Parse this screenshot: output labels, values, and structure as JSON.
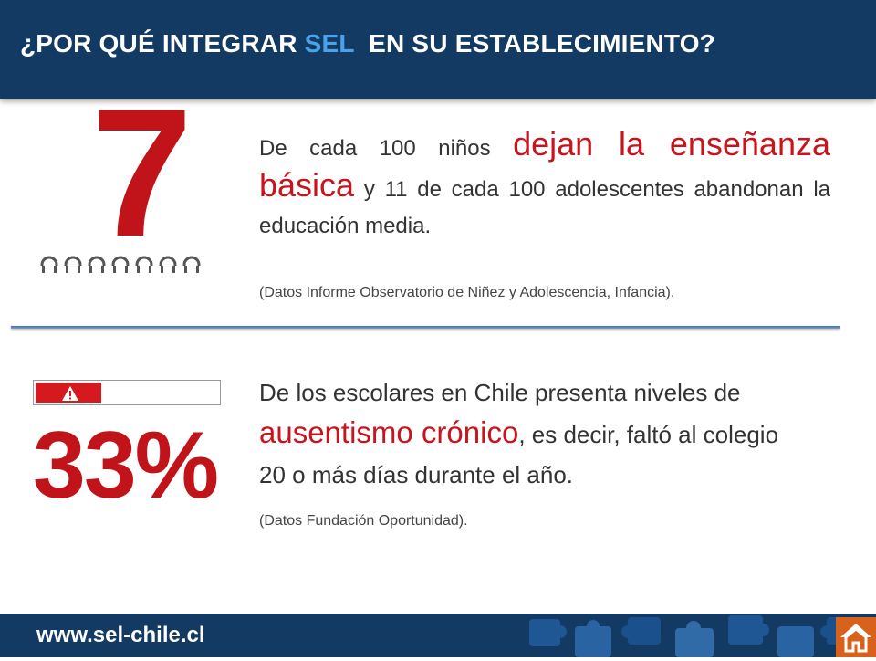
{
  "header": {
    "title_pre": "¿POR QUÉ INTEGRAR ",
    "title_highlight": "SEL",
    "title_post": "  EN SU ESTABLECIMIENTO?"
  },
  "stat1": {
    "figure": "7",
    "people_icon": "person-icon",
    "people_count": 7,
    "text_a": "De cada 100 niños ",
    "text_b": "dejan la enseñanza básica",
    "text_c": " y 11 de cada 100 adolescentes abandonan la educación media.",
    "source": "(Datos Informe Observatorio de Niñez y Adolescencia, Infancia)."
  },
  "stat2": {
    "figure": "33%",
    "warning_icon": "warning-icon",
    "text_a": "De los escolares en Chile presenta niveles de ",
    "text_b": "ausentismo crónico",
    "text_c": ", es decir, faltó al colegio 20 o más días durante el año.",
    "source": "(Datos Fundación Oportunidad)."
  },
  "footer": {
    "url": "www.sel-chile.cl",
    "home_icon": "home-icon"
  },
  "colors": {
    "navy": "#123a62",
    "highlight_blue": "#4aa3ea",
    "accent_red": "#c0141a",
    "home_orange": "#d8611c"
  }
}
